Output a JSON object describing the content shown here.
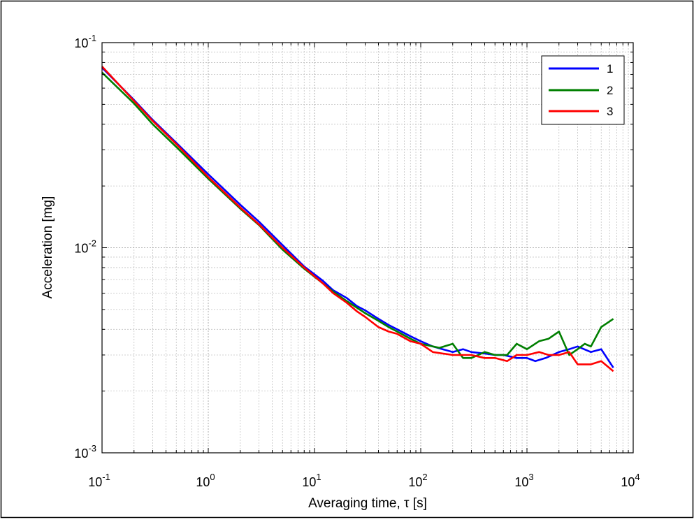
{
  "chart_data": {
    "type": "line",
    "xscale": "log",
    "yscale": "log",
    "xlabel": "Averaging time, τ [s]",
    "ylabel": "Acceleration [mg]",
    "xlim": [
      0.1,
      10000
    ],
    "ylim": [
      0.001,
      0.1
    ],
    "grid": true,
    "legend_position": "top-right",
    "x_ticks": [
      {
        "base": "10",
        "exp": "-1",
        "value": 0.1
      },
      {
        "base": "10",
        "exp": "0",
        "value": 1
      },
      {
        "base": "10",
        "exp": "1",
        "value": 10
      },
      {
        "base": "10",
        "exp": "2",
        "value": 100
      },
      {
        "base": "10",
        "exp": "3",
        "value": 1000
      },
      {
        "base": "10",
        "exp": "4",
        "value": 10000
      }
    ],
    "y_ticks": [
      {
        "base": "10",
        "exp": "-1",
        "value": 0.1
      },
      {
        "base": "10",
        "exp": "-2",
        "value": 0.01
      },
      {
        "base": "10",
        "exp": "-3",
        "value": 0.001
      }
    ],
    "series": [
      {
        "name": "1",
        "color": "#0000ff",
        "points": [
          [
            0.1,
            0.0755
          ],
          [
            0.2,
            0.0525
          ],
          [
            0.3,
            0.042
          ],
          [
            0.5,
            0.0325
          ],
          [
            1,
            0.0228
          ],
          [
            2,
            0.0162
          ],
          [
            3,
            0.0134
          ],
          [
            5,
            0.0103
          ],
          [
            8,
            0.0081
          ],
          [
            12,
            0.0069
          ],
          [
            15,
            0.0062
          ],
          [
            20,
            0.0057
          ],
          [
            25,
            0.0052
          ],
          [
            30,
            0.00495
          ],
          [
            40,
            0.0045
          ],
          [
            50,
            0.0042
          ],
          [
            60,
            0.004
          ],
          [
            80,
            0.0037
          ],
          [
            100,
            0.0035
          ],
          [
            130,
            0.0033
          ],
          [
            200,
            0.0031
          ],
          [
            250,
            0.0032
          ],
          [
            300,
            0.0031
          ],
          [
            400,
            0.00305
          ],
          [
            500,
            0.003
          ],
          [
            600,
            0.003
          ],
          [
            800,
            0.0029
          ],
          [
            1000,
            0.0029
          ],
          [
            1200,
            0.0028
          ],
          [
            1500,
            0.0029
          ],
          [
            2000,
            0.0031
          ],
          [
            2500,
            0.0032
          ],
          [
            3000,
            0.0033
          ],
          [
            4000,
            0.0031
          ],
          [
            5000,
            0.0032
          ],
          [
            6500,
            0.0026
          ]
        ]
      },
      {
        "name": "2",
        "color": "#007f00",
        "points": [
          [
            0.1,
            0.0715
          ],
          [
            0.2,
            0.0505
          ],
          [
            0.3,
            0.04
          ],
          [
            0.5,
            0.031
          ],
          [
            1,
            0.0217
          ],
          [
            2,
            0.0155
          ],
          [
            3,
            0.0129
          ],
          [
            5,
            0.0098
          ],
          [
            8,
            0.0079
          ],
          [
            12,
            0.0067
          ],
          [
            15,
            0.0061
          ],
          [
            20,
            0.0055
          ],
          [
            25,
            0.0051
          ],
          [
            30,
            0.0048
          ],
          [
            40,
            0.0044
          ],
          [
            50,
            0.0041
          ],
          [
            60,
            0.0039
          ],
          [
            80,
            0.0036
          ],
          [
            100,
            0.0034
          ],
          [
            150,
            0.00325
          ],
          [
            200,
            0.0034
          ],
          [
            250,
            0.0029
          ],
          [
            300,
            0.0029
          ],
          [
            400,
            0.0031
          ],
          [
            500,
            0.003
          ],
          [
            650,
            0.003
          ],
          [
            800,
            0.0034
          ],
          [
            1000,
            0.0032
          ],
          [
            1300,
            0.0035
          ],
          [
            1600,
            0.0036
          ],
          [
            2000,
            0.0039
          ],
          [
            2500,
            0.003
          ],
          [
            3000,
            0.0032
          ],
          [
            3500,
            0.0034
          ],
          [
            4000,
            0.0033
          ],
          [
            5000,
            0.0041
          ],
          [
            6500,
            0.0045
          ]
        ]
      },
      {
        "name": "3",
        "color": "#ff0000",
        "points": [
          [
            0.1,
            0.0765
          ],
          [
            0.2,
            0.052
          ],
          [
            0.3,
            0.0415
          ],
          [
            0.5,
            0.032
          ],
          [
            1,
            0.0221
          ],
          [
            2,
            0.0157
          ],
          [
            3,
            0.013
          ],
          [
            5,
            0.01
          ],
          [
            8,
            0.008
          ],
          [
            12,
            0.0067
          ],
          [
            15,
            0.006
          ],
          [
            20,
            0.0054
          ],
          [
            25,
            0.0049
          ],
          [
            30,
            0.0046
          ],
          [
            40,
            0.0041
          ],
          [
            50,
            0.0039
          ],
          [
            60,
            0.0038
          ],
          [
            80,
            0.0035
          ],
          [
            100,
            0.0034
          ],
          [
            130,
            0.0031
          ],
          [
            200,
            0.003
          ],
          [
            300,
            0.003
          ],
          [
            400,
            0.0029
          ],
          [
            500,
            0.0029
          ],
          [
            650,
            0.0028
          ],
          [
            800,
            0.003
          ],
          [
            1000,
            0.003
          ],
          [
            1300,
            0.0031
          ],
          [
            1600,
            0.003
          ],
          [
            2000,
            0.003
          ],
          [
            2500,
            0.0031
          ],
          [
            3000,
            0.0027
          ],
          [
            4000,
            0.0027
          ],
          [
            5000,
            0.0028
          ],
          [
            6500,
            0.0025
          ]
        ]
      }
    ]
  }
}
